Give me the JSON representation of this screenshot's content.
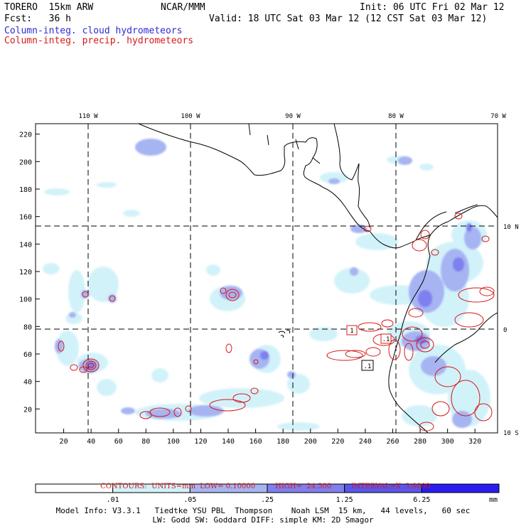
{
  "header": {
    "model_name": "TORERO  15km ARW",
    "org": "NCAR/MMM",
    "init": "Init: 06 UTC Fri 02 Mar 12",
    "fcst": "Fcst:   36 h",
    "valid": "Valid: 18 UTC Sat 03 Mar 12 (12 CST Sat 03 Mar 12)",
    "field1": "Column-integ. cloud hydrometeors",
    "field2": "Column-integ. precip. hydrometeors"
  },
  "axes": {
    "top_lon_labels": [
      "110 W",
      "100 W",
      "90 W",
      "80 W",
      "70 W"
    ],
    "right_lat_labels": [
      "10 N",
      "0",
      "10 S"
    ],
    "y_ticks": [
      "220",
      "200",
      "180",
      "160",
      "140",
      "120",
      "100",
      "80",
      "60",
      "40",
      "20"
    ],
    "x_ticks": [
      "20",
      "40",
      "60",
      "80",
      "100",
      "120",
      "140",
      "160",
      "180",
      "200",
      "220",
      "240",
      "260",
      "280",
      "300",
      "320"
    ]
  },
  "contour_labels": [
    "1",
    ".1",
    ".1"
  ],
  "contours_info": {
    "units": "CONTOURS:  UNITS=mm",
    "low": "LOW= 0.10000",
    "high": "HIGH=  24.300",
    "interval": "INTERVAL=X  3.0000"
  },
  "colorbar": {
    "labels": [
      ".01",
      ".05",
      ".25",
      "1.25",
      "6.25"
    ],
    "unit": "mm",
    "colors": [
      "#ffffff",
      "#d2f2fa",
      "#a6b4f2",
      "#7f80ee",
      "#5a56ec",
      "#2b1df0"
    ]
  },
  "footer": {
    "line1": "Model Info: V3.3.1   Tiedtke YSU PBL  Thompson    Noah LSM  15 km,   44 levels,   60 sec",
    "line2": "LW: Godd SW: Goddard DIFF: simple KM: 2D Smagor"
  }
}
